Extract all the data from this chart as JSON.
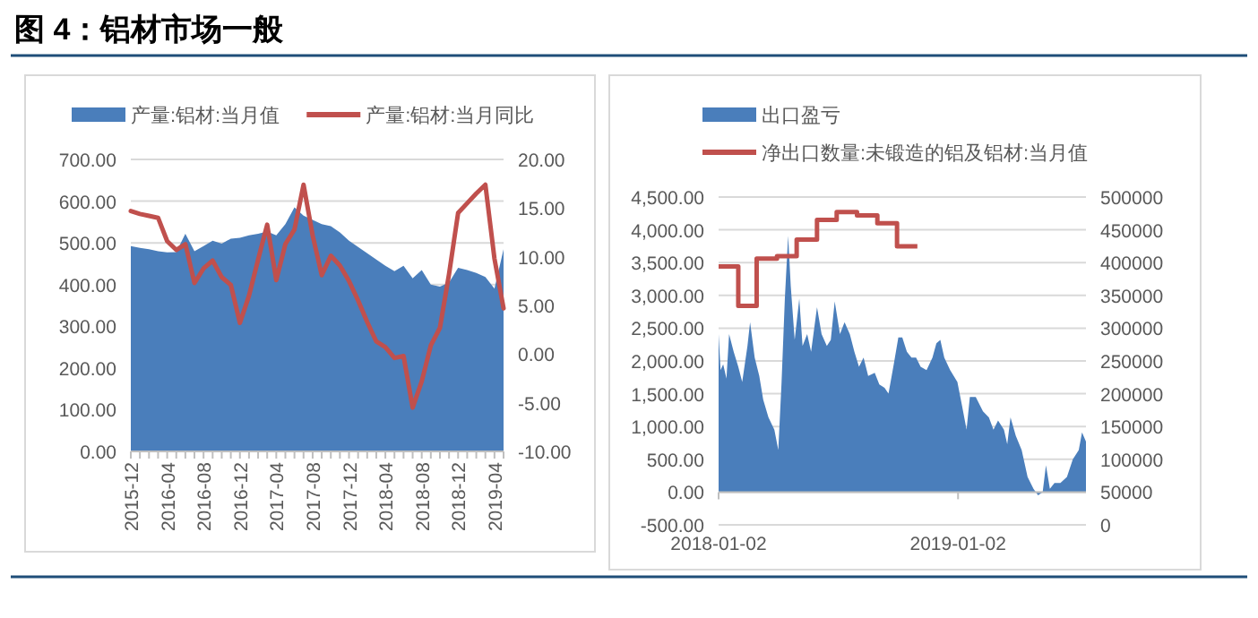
{
  "chart_data": [
    {
      "type": "area",
      "title": "图 4：铝材市场一般",
      "categories": [
        "2015-12",
        null,
        null,
        null,
        "2016-04",
        null,
        null,
        null,
        "2016-08",
        null,
        null,
        null,
        "2016-12",
        null,
        null,
        null,
        "2017-04",
        null,
        null,
        null,
        "2017-08",
        null,
        null,
        null,
        "2017-12",
        null,
        null,
        null,
        "2018-04",
        null,
        null,
        null,
        "2018-08",
        null,
        null,
        null,
        "2018-12",
        null,
        null,
        null,
        "2019-04",
        null
      ],
      "series": [
        {
          "name": "产量:铝材:当月值",
          "type": "area",
          "color": "#4a7ebb",
          "values": [
            492,
            488,
            485,
            480,
            477,
            478,
            522,
            480,
            492,
            505,
            498,
            510,
            512,
            518,
            522,
            527,
            518,
            545,
            585,
            565,
            555,
            545,
            540,
            525,
            505,
            490,
            475,
            460,
            445,
            432,
            445,
            415,
            435,
            400,
            395,
            405,
            440,
            435,
            428,
            418,
            390,
            485
          ]
        },
        {
          "name": "产量:铝材:当月同比",
          "type": "line",
          "axis": "y2",
          "color": "#c0504d",
          "values": [
            14.7,
            14.4,
            14.2,
            14.0,
            11.6,
            10.7,
            11.3,
            7.3,
            8.8,
            9.6,
            7.9,
            7.1,
            3.2,
            6.0,
            9.7,
            13.3,
            7.6,
            11.3,
            12.8,
            17.4,
            12.2,
            8.1,
            10.1,
            9.1,
            7.5,
            5.5,
            3.3,
            1.3,
            0.7,
            -0.4,
            -0.2,
            -5.5,
            -2.8,
            0.9,
            2.7,
            8.2,
            14.5,
            15.5,
            16.5,
            17.4,
            9.8,
            4.7
          ]
        }
      ],
      "ylim": [
        0,
        700
      ],
      "yticks": [
        {
          "value": 0,
          "label": "0.00"
        },
        {
          "value": 100,
          "label": "100.00"
        },
        {
          "value": 200,
          "label": "200.00"
        },
        {
          "value": 300,
          "label": "300.00"
        },
        {
          "value": 400,
          "label": "400.00"
        },
        {
          "value": 500,
          "label": "500.00"
        },
        {
          "value": 600,
          "label": "600.00"
        },
        {
          "value": 700,
          "label": "700.00"
        }
      ],
      "y2lim": [
        -10,
        20
      ],
      "y2ticks": [
        {
          "value": -10,
          "label": "-10.00"
        },
        {
          "value": -5,
          "label": "-5.00"
        },
        {
          "value": 0,
          "label": "0.00"
        },
        {
          "value": 5,
          "label": "5.00"
        },
        {
          "value": 10,
          "label": "10.00"
        },
        {
          "value": 15,
          "label": "15.00"
        },
        {
          "value": 20,
          "label": "20.00"
        }
      ],
      "grid": "y",
      "legend": "top"
    },
    {
      "type": "area",
      "series": [
        {
          "name": "出口盈亏",
          "type": "area",
          "color": "#4a7ebb",
          "x": [
            "2018-01-02",
            "2018-01-05",
            "2018-01-09",
            "2018-01-14",
            "2018-01-18",
            "2018-01-25",
            "2018-02-01",
            "2018-02-07",
            "2018-02-15",
            "2018-02-19",
            "2018-02-26",
            "2018-03-05",
            "2018-03-11",
            "2018-03-19",
            "2018-03-28",
            "2018-04-03",
            "2018-04-08",
            "2018-04-13",
            "2018-04-18",
            "2018-04-22",
            "2018-04-28",
            "2018-05-05",
            "2018-05-10",
            "2018-05-17",
            "2018-05-23",
            "2018-06-01",
            "2018-06-08",
            "2018-06-16",
            "2018-06-22",
            "2018-06-28",
            "2018-07-06",
            "2018-07-13",
            "2018-07-21",
            "2018-07-28",
            "2018-08-04",
            "2018-08-11",
            "2018-08-18",
            "2018-08-28",
            "2018-09-04",
            "2018-09-12",
            "2018-09-18",
            "2018-09-26",
            "2018-10-03",
            "2018-10-09",
            "2018-10-16",
            "2018-10-23",
            "2018-10-30",
            "2018-11-06",
            "2018-11-15",
            "2018-11-24",
            "2018-11-30",
            "2018-12-06",
            "2018-12-12",
            "2018-12-21",
            "2019-01-01",
            "2019-01-08",
            "2019-01-15",
            "2019-01-20",
            "2019-01-29",
            "2019-02-09",
            "2019-02-18",
            "2019-02-25",
            "2019-03-04",
            "2019-03-13",
            "2019-03-18",
            "2019-03-23",
            "2019-03-31",
            "2019-04-09",
            "2019-04-18",
            "2019-04-27",
            "2019-05-04",
            "2019-05-11",
            "2019-05-16",
            "2019-05-22",
            "2019-05-29",
            "2019-06-07",
            "2019-06-17",
            "2019-06-26",
            "2019-07-05",
            "2019-07-10",
            "2019-07-16"
          ],
          "values": [
            2410,
            1860,
            1950,
            1730,
            2410,
            2140,
            1910,
            1680,
            2230,
            2590,
            2050,
            1770,
            1410,
            1140,
            950,
            640,
            1680,
            2950,
            3910,
            3140,
            2320,
            2950,
            2230,
            2410,
            2140,
            2820,
            2410,
            2230,
            2320,
            2910,
            2410,
            2590,
            2410,
            2140,
            1910,
            2050,
            1770,
            1820,
            1640,
            1590,
            1500,
            1950,
            2360,
            2360,
            2140,
            2050,
            2050,
            1910,
            1860,
            2050,
            2270,
            2320,
            2050,
            1860,
            1680,
            1320,
            950,
            1450,
            1450,
            1230,
            1140,
            950,
            1090,
            950,
            730,
            1140,
            860,
            640,
            230,
            50,
            -50,
            0,
            410,
            50,
            140,
            140,
            230,
            500,
            640,
            910,
            770
          ]
        },
        {
          "name": "净出口数量:未锻造的铝及铝材:当月值",
          "type": "step",
          "axis": "y2",
          "color": "#c0504d",
          "x": [
            "2018-01-02",
            "2018-02-01",
            "2018-03-01",
            "2018-04-01",
            "2018-05-01",
            "2018-06-01",
            "2018-07-01",
            "2018-08-01",
            "2018-09-01",
            "2018-10-01",
            "2018-11-01"
          ],
          "values": [
            394000,
            334000,
            406000,
            410000,
            435000,
            465000,
            477000,
            472000,
            460000,
            425000,
            425000
          ]
        }
      ],
      "xlim": [
        "2018-01-02",
        "2019-07-16"
      ],
      "xticks": [
        "2018-01-02",
        "2019-01-02"
      ],
      "ylim": [
        -500,
        4500
      ],
      "yticks": [
        {
          "value": -500,
          "label": "-500.00"
        },
        {
          "value": 0,
          "label": "0.00"
        },
        {
          "value": 500,
          "label": "500.00"
        },
        {
          "value": 1000,
          "label": "1,000.00"
        },
        {
          "value": 1500,
          "label": "1,500.00"
        },
        {
          "value": 2000,
          "label": "2,000.00"
        },
        {
          "value": 2500,
          "label": "2,500.00"
        },
        {
          "value": 3000,
          "label": "3,000.00"
        },
        {
          "value": 3500,
          "label": "3,500.00"
        },
        {
          "value": 4000,
          "label": "4,000.00"
        },
        {
          "value": 4500,
          "label": "4,500.00"
        }
      ],
      "y2lim": [
        0,
        500000
      ],
      "y2ticks": [
        0,
        50000,
        100000,
        150000,
        200000,
        250000,
        300000,
        350000,
        400000,
        450000,
        500000
      ],
      "grid": "y",
      "legend": "top"
    }
  ]
}
